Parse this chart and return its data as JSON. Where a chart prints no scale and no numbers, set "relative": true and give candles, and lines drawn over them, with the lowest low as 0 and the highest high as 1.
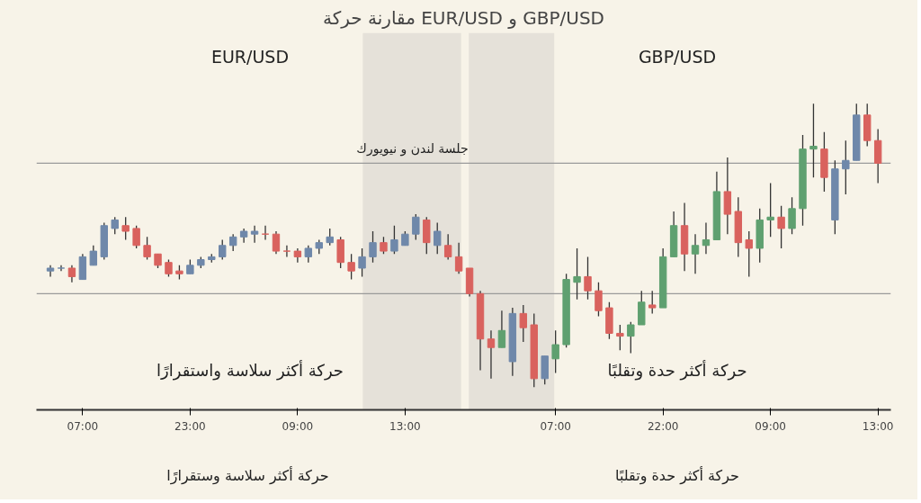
{
  "chart_data": {
    "type": "candlestick",
    "title": "مقارنة حركة EUR/USD و GBP/USD",
    "relative": true,
    "grid": false,
    "categories": [
      null,
      null,
      null,
      "07:00",
      null,
      null,
      null,
      null,
      null,
      null,
      null,
      null,
      null,
      "23:00",
      null,
      null,
      null,
      null,
      null,
      null,
      null,
      null,
      null,
      "09:00",
      null,
      null,
      null,
      null,
      null,
      null,
      null,
      null,
      null,
      "13:00",
      null,
      null,
      null,
      null,
      null,
      null,
      null,
      null,
      null,
      null,
      null,
      null,
      null,
      "07:00",
      null,
      null,
      null,
      null,
      null,
      null,
      null,
      null,
      null,
      "22:00",
      null,
      null,
      null,
      null,
      null,
      null,
      null,
      null,
      null,
      "09:00",
      null,
      null,
      null,
      null,
      null,
      null,
      null,
      null,
      null,
      "13:00"
    ],
    "tick_labels": "x",
    "ohlc": [
      [
        0.41,
        0.43,
        0.39,
        0.42
      ],
      [
        0.42,
        0.43,
        0.41,
        0.42
      ],
      [
        0.42,
        0.43,
        0.37,
        0.39
      ],
      [
        0.38,
        0.47,
        0.38,
        0.46
      ],
      [
        0.43,
        0.5,
        0.43,
        0.48
      ],
      [
        0.46,
        0.58,
        0.45,
        0.57
      ],
      [
        0.56,
        0.6,
        0.54,
        0.59
      ],
      [
        0.57,
        0.6,
        0.52,
        0.55
      ],
      [
        0.56,
        0.57,
        0.49,
        0.5
      ],
      [
        0.5,
        0.53,
        0.45,
        0.46
      ],
      [
        0.47,
        0.47,
        0.42,
        0.43
      ],
      [
        0.44,
        0.45,
        0.39,
        0.4
      ],
      [
        0.41,
        0.43,
        0.38,
        0.4
      ],
      [
        0.4,
        0.45,
        0.4,
        0.43
      ],
      [
        0.43,
        0.46,
        0.42,
        0.45
      ],
      [
        0.45,
        0.47,
        0.44,
        0.46
      ],
      [
        0.46,
        0.52,
        0.45,
        0.5
      ],
      [
        0.5,
        0.54,
        0.48,
        0.53
      ],
      [
        0.53,
        0.56,
        0.51,
        0.55
      ],
      [
        0.54,
        0.57,
        0.51,
        0.55
      ],
      [
        0.54,
        0.57,
        0.52,
        0.54
      ],
      [
        0.54,
        0.55,
        0.47,
        0.48
      ],
      [
        0.48,
        0.5,
        0.46,
        0.48
      ],
      [
        0.48,
        0.49,
        0.44,
        0.46
      ],
      [
        0.46,
        0.5,
        0.44,
        0.49
      ],
      [
        0.49,
        0.52,
        0.47,
        0.51
      ],
      [
        0.51,
        0.56,
        0.5,
        0.53
      ],
      [
        0.52,
        0.53,
        0.42,
        0.44
      ],
      [
        0.44,
        0.47,
        0.38,
        0.41
      ],
      [
        0.42,
        0.49,
        0.39,
        0.46
      ],
      [
        0.46,
        0.55,
        0.44,
        0.51
      ],
      [
        0.51,
        0.53,
        0.47,
        0.48
      ],
      [
        0.48,
        0.57,
        0.47,
        0.52
      ],
      [
        0.5,
        0.55,
        0.5,
        0.54
      ],
      [
        0.54,
        0.61,
        0.52,
        0.6
      ],
      [
        0.59,
        0.6,
        0.47,
        0.51
      ],
      [
        0.5,
        0.58,
        0.47,
        0.55
      ],
      [
        0.5,
        0.54,
        0.45,
        0.46
      ],
      [
        0.46,
        0.51,
        0.4,
        0.41
      ],
      [
        0.42,
        0.42,
        0.32,
        0.33
      ],
      [
        0.33,
        0.34,
        0.06,
        0.17
      ],
      [
        0.17,
        0.2,
        0.03,
        0.14
      ],
      [
        0.14,
        0.27,
        0.14,
        0.2
      ],
      [
        0.09,
        0.28,
        0.04,
        0.26
      ],
      [
        0.26,
        0.29,
        0.16,
        0.21
      ],
      [
        0.22,
        0.26,
        0.0,
        0.03
      ],
      [
        0.03,
        0.11,
        0.01,
        0.11
      ],
      [
        0.1,
        0.2,
        0.05,
        0.15
      ],
      [
        0.15,
        0.4,
        0.14,
        0.38
      ],
      [
        0.37,
        0.49,
        0.31,
        0.39
      ],
      [
        0.39,
        0.46,
        0.31,
        0.34
      ],
      [
        0.34,
        0.37,
        0.25,
        0.27
      ],
      [
        0.28,
        0.3,
        0.17,
        0.19
      ],
      [
        0.19,
        0.22,
        0.13,
        0.18
      ],
      [
        0.18,
        0.23,
        0.12,
        0.22
      ],
      [
        0.22,
        0.34,
        0.22,
        0.3
      ],
      [
        0.29,
        0.34,
        0.26,
        0.28
      ],
      [
        0.28,
        0.49,
        0.28,
        0.46
      ],
      [
        0.46,
        0.62,
        0.46,
        0.57
      ],
      [
        0.57,
        0.65,
        0.41,
        0.47
      ],
      [
        0.47,
        0.54,
        0.4,
        0.5
      ],
      [
        0.5,
        0.58,
        0.47,
        0.52
      ],
      [
        0.52,
        0.76,
        0.52,
        0.69
      ],
      [
        0.69,
        0.81,
        0.54,
        0.61
      ],
      [
        0.62,
        0.67,
        0.46,
        0.51
      ],
      [
        0.52,
        0.55,
        0.39,
        0.49
      ],
      [
        0.49,
        0.63,
        0.44,
        0.59
      ],
      [
        0.59,
        0.72,
        0.53,
        0.6
      ],
      [
        0.6,
        0.64,
        0.49,
        0.56
      ],
      [
        0.56,
        0.67,
        0.54,
        0.63
      ],
      [
        0.63,
        0.89,
        0.57,
        0.84
      ],
      [
        0.84,
        1.0,
        0.74,
        0.85
      ],
      [
        0.84,
        0.9,
        0.69,
        0.74
      ],
      [
        0.59,
        0.8,
        0.54,
        0.77
      ],
      [
        0.77,
        0.87,
        0.68,
        0.8
      ],
      [
        0.8,
        1.0,
        0.8,
        0.96
      ],
      [
        0.96,
        1.0,
        0.85,
        0.87
      ],
      [
        0.87,
        0.91,
        0.72,
        0.79
      ]
    ],
    "colors": [
      "#6f88aa",
      "#6f88aa",
      "#d9625e",
      "#6f88aa",
      "#6f88aa",
      "#6f88aa",
      "#6f88aa",
      "#d9625e",
      "#d9625e",
      "#d9625e",
      "#d9625e",
      "#d9625e",
      "#d9625e",
      "#6f88aa",
      "#6f88aa",
      "#6f88aa",
      "#6f88aa",
      "#6f88aa",
      "#6f88aa",
      "#6f88aa",
      "#d9625e",
      "#d9625e",
      "#d9625e",
      "#d9625e",
      "#6f88aa",
      "#6f88aa",
      "#6f88aa",
      "#d9625e",
      "#d9625e",
      "#6f88aa",
      "#6f88aa",
      "#d9625e",
      "#6f88aa",
      "#6f88aa",
      "#6f88aa",
      "#d9625e",
      "#6f88aa",
      "#d9625e",
      "#d9625e",
      "#d9625e",
      "#d9625e",
      "#d9625e",
      "#5fa070",
      "#6f88aa",
      "#d9625e",
      "#d9625e",
      "#6f88aa",
      "#5fa070",
      "#5fa070",
      "#5fa070",
      "#d9625e",
      "#d9625e",
      "#d9625e",
      "#d9625e",
      "#5fa070",
      "#5fa070",
      "#d9625e",
      "#5fa070",
      "#5fa070",
      "#d9625e",
      "#5fa070",
      "#5fa070",
      "#5fa070",
      "#d9625e",
      "#d9625e",
      "#d9625e",
      "#5fa070",
      "#5fa070",
      "#d9625e",
      "#5fa070",
      "#5fa070",
      "#5fa070",
      "#d9625e",
      "#6f88aa",
      "#6f88aa",
      "#6f88aa",
      "#d9625e",
      "#d9625e"
    ],
    "ref_lines": [
      {
        "axis": "y",
        "value": 0.79,
        "color": "#9a9a9a"
      },
      {
        "axis": "y",
        "value": 0.33,
        "color": "#9a9a9a"
      }
    ],
    "annotations": [
      "EUR/USD",
      "GBP/USD",
      "حركة أكثر سلاسة واستقرارًا",
      "حركة أكثر حدة وتقلبًا",
      "حركة  أكثر سلاسة وستقرارًا",
      "حركة أكثر حدة وتقلبًا",
      "جلسة لندن و نيويورك"
    ]
  }
}
